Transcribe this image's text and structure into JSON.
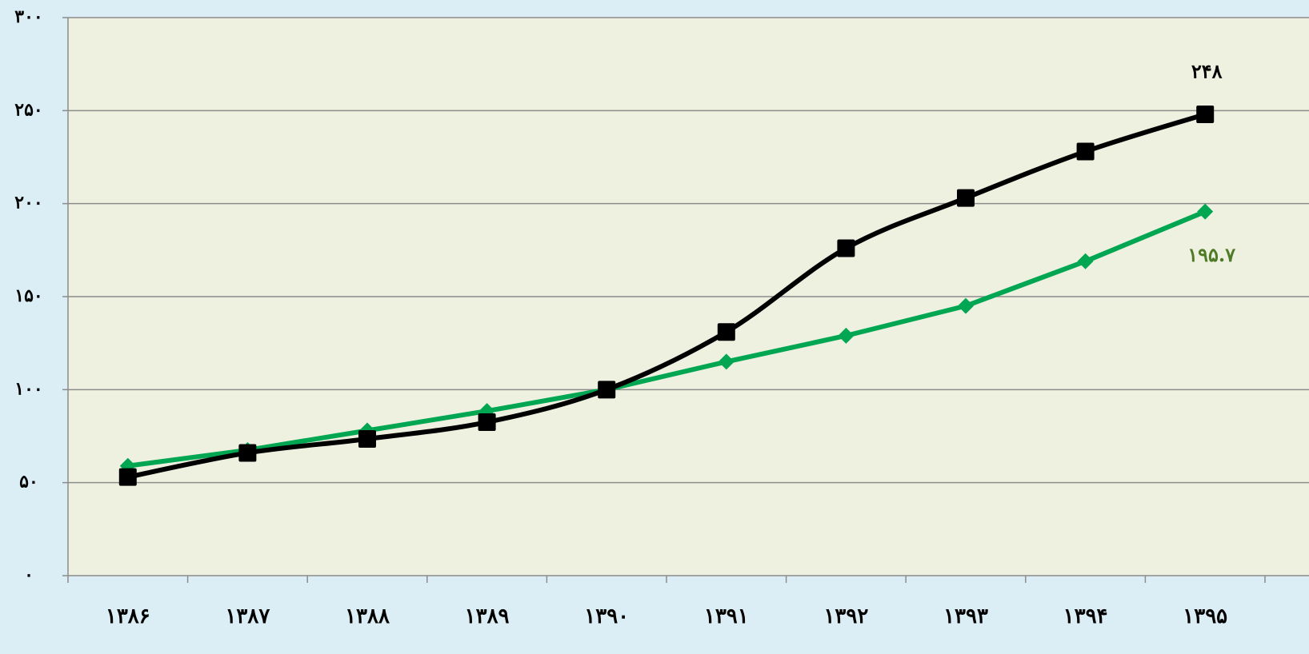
{
  "chart_data": {
    "type": "line",
    "categories": [
      "۱۳۸۶",
      "۱۳۸۷",
      "۱۳۸۸",
      "۱۳۸۹",
      "۱۳۹۰",
      "۱۳۹۱",
      "۱۳۹۲",
      "۱۳۹۳",
      "۱۳۹۴",
      "۱۳۹۵"
    ],
    "series": [
      {
        "color": "#00a651",
        "marker": "diamond",
        "smooth": false,
        "values": [
          59,
          67.5,
          78,
          88.5,
          100,
          115,
          129,
          145,
          169,
          195.7
        ],
        "value_labels": [
          null,
          null,
          null,
          null,
          null,
          null,
          null,
          null,
          null,
          "۱۹۵.۷"
        ],
        "label_color": "#4f7a28"
      },
      {
        "color": "#000000",
        "marker": "square",
        "smooth": true,
        "values": [
          53,
          66,
          73.5,
          82.5,
          100,
          131,
          176,
          203,
          228,
          248
        ],
        "value_labels": [
          null,
          null,
          null,
          null,
          null,
          null,
          null,
          null,
          null,
          "۲۴۸"
        ],
        "label_color": "#000000"
      }
    ],
    "ylim": [
      0,
      300
    ],
    "yticks": [
      {
        "value": 0,
        "label": "۰"
      },
      {
        "value": 50,
        "label": "۵۰"
      },
      {
        "value": 100,
        "label": "۱۰۰"
      },
      {
        "value": 150,
        "label": "۱۵۰"
      },
      {
        "value": 200,
        "label": "۲۰۰"
      },
      {
        "value": 250,
        "label": "۲۵۰"
      },
      {
        "value": 300,
        "label": "۳۰۰"
      }
    ],
    "grid": true
  }
}
